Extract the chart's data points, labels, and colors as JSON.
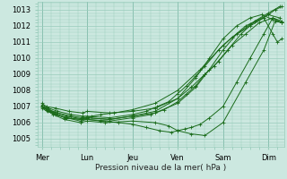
{
  "xlabel": "Pression niveau de la mer( hPa )",
  "ylim": [
    1004.5,
    1013.5
  ],
  "yticks": [
    1005,
    1006,
    1007,
    1008,
    1009,
    1010,
    1011,
    1012,
    1013
  ],
  "xtick_labels": [
    "Mer",
    "Lun",
    "Jeu",
    "Ven",
    "Sam",
    "Dim"
  ],
  "xtick_positions": [
    0,
    1,
    2,
    3,
    4,
    5
  ],
  "xlim": [
    -0.1,
    5.35
  ],
  "bg_color": "#cce8e0",
  "grid_color": "#99ccbb",
  "line_color": "#1a6b1a",
  "lines": [
    {
      "x": [
        0.0,
        0.08,
        0.18,
        0.35,
        0.55,
        0.85,
        1.0,
        1.1,
        1.3,
        1.6,
        2.0,
        2.5,
        3.0,
        3.5,
        4.0,
        4.5,
        5.0,
        5.25
      ],
      "y": [
        1007.0,
        1006.9,
        1006.7,
        1006.5,
        1006.3,
        1006.2,
        1006.3,
        1006.4,
        1006.5,
        1006.6,
        1006.8,
        1007.2,
        1008.0,
        1009.3,
        1010.8,
        1012.0,
        1012.7,
        1012.5
      ]
    },
    {
      "x": [
        0.0,
        0.1,
        0.25,
        0.5,
        0.85,
        1.0,
        1.4,
        2.0,
        2.5,
        2.8,
        3.0,
        3.3,
        3.6,
        4.0,
        4.5,
        4.9,
        5.15,
        5.3
      ],
      "y": [
        1007.0,
        1006.8,
        1006.5,
        1006.2,
        1006.0,
        1006.1,
        1006.0,
        1006.1,
        1006.0,
        1005.8,
        1005.5,
        1005.3,
        1005.2,
        1006.0,
        1008.5,
        1010.5,
        1012.3,
        1012.2
      ]
    },
    {
      "x": [
        0.0,
        0.12,
        0.3,
        0.55,
        0.85,
        1.0,
        1.3,
        1.7,
        2.0,
        2.3,
        2.6,
        2.85,
        3.0,
        3.15,
        3.3,
        3.5,
        3.7,
        4.0,
        4.3,
        4.6,
        4.9,
        5.1,
        5.3
      ],
      "y": [
        1006.9,
        1006.7,
        1006.5,
        1006.3,
        1006.1,
        1006.2,
        1006.1,
        1006.0,
        1005.9,
        1005.7,
        1005.5,
        1005.4,
        1005.5,
        1005.6,
        1005.7,
        1005.9,
        1006.3,
        1007.0,
        1008.5,
        1010.0,
        1011.5,
        1012.5,
        1012.3
      ]
    },
    {
      "x": [
        0.0,
        0.1,
        0.25,
        0.5,
        0.85,
        1.0,
        1.5,
        2.0,
        2.4,
        2.7,
        3.0,
        3.2,
        3.4,
        3.6,
        3.8,
        4.1,
        4.4,
        4.7,
        5.0,
        5.25
      ],
      "y": [
        1007.0,
        1006.8,
        1006.6,
        1006.3,
        1006.2,
        1006.2,
        1006.1,
        1006.3,
        1006.5,
        1006.8,
        1007.3,
        1007.8,
        1008.3,
        1009.0,
        1009.5,
        1010.5,
        1011.5,
        1012.3,
        1012.8,
        1013.2
      ]
    },
    {
      "x": [
        0.0,
        0.1,
        0.3,
        0.6,
        0.9,
        1.0,
        1.5,
        2.0,
        2.5,
        3.0,
        3.3,
        3.6,
        3.9,
        4.2,
        4.5,
        4.8,
        5.1,
        5.3
      ],
      "y": [
        1007.2,
        1007.0,
        1006.9,
        1006.7,
        1006.6,
        1006.7,
        1006.6,
        1006.7,
        1006.9,
        1007.5,
        1008.2,
        1009.0,
        1009.8,
        1010.8,
        1011.5,
        1012.2,
        1012.5,
        1012.2
      ]
    },
    {
      "x": [
        0.0,
        0.15,
        0.35,
        0.65,
        0.9,
        1.0,
        1.5,
        2.0,
        2.3,
        2.55,
        2.8,
        3.0,
        3.2,
        3.4,
        3.6,
        3.9,
        4.2,
        4.6,
        4.9,
        5.15,
        5.3
      ],
      "y": [
        1007.1,
        1006.9,
        1006.7,
        1006.5,
        1006.4,
        1006.4,
        1006.3,
        1006.5,
        1006.7,
        1007.0,
        1007.3,
        1007.8,
        1008.3,
        1008.9,
        1009.5,
        1010.5,
        1011.3,
        1012.0,
        1012.5,
        1013.0,
        1013.2
      ]
    },
    {
      "x": [
        0.0,
        0.15,
        0.35,
        0.65,
        0.9,
        1.0,
        1.5,
        2.0,
        2.5,
        3.0,
        3.4,
        3.7,
        4.0,
        4.3,
        4.6,
        4.9,
        5.1,
        5.2,
        5.3
      ],
      "y": [
        1007.0,
        1006.8,
        1006.6,
        1006.4,
        1006.3,
        1006.3,
        1006.2,
        1006.4,
        1006.6,
        1007.2,
        1008.2,
        1009.3,
        1010.5,
        1011.5,
        1012.1,
        1012.5,
        1011.5,
        1011.0,
        1011.2
      ]
    },
    {
      "x": [
        0.0,
        0.12,
        0.28,
        0.55,
        0.85,
        1.0,
        1.5,
        2.0,
        2.5,
        3.0,
        3.4,
        3.7,
        4.0,
        4.3,
        4.6,
        4.85,
        5.1,
        5.3
      ],
      "y": [
        1007.0,
        1006.85,
        1006.65,
        1006.4,
        1006.25,
        1006.3,
        1006.2,
        1006.4,
        1006.7,
        1007.5,
        1008.8,
        1010.0,
        1011.2,
        1012.0,
        1012.5,
        1012.7,
        1012.4,
        1012.2
      ]
    }
  ]
}
